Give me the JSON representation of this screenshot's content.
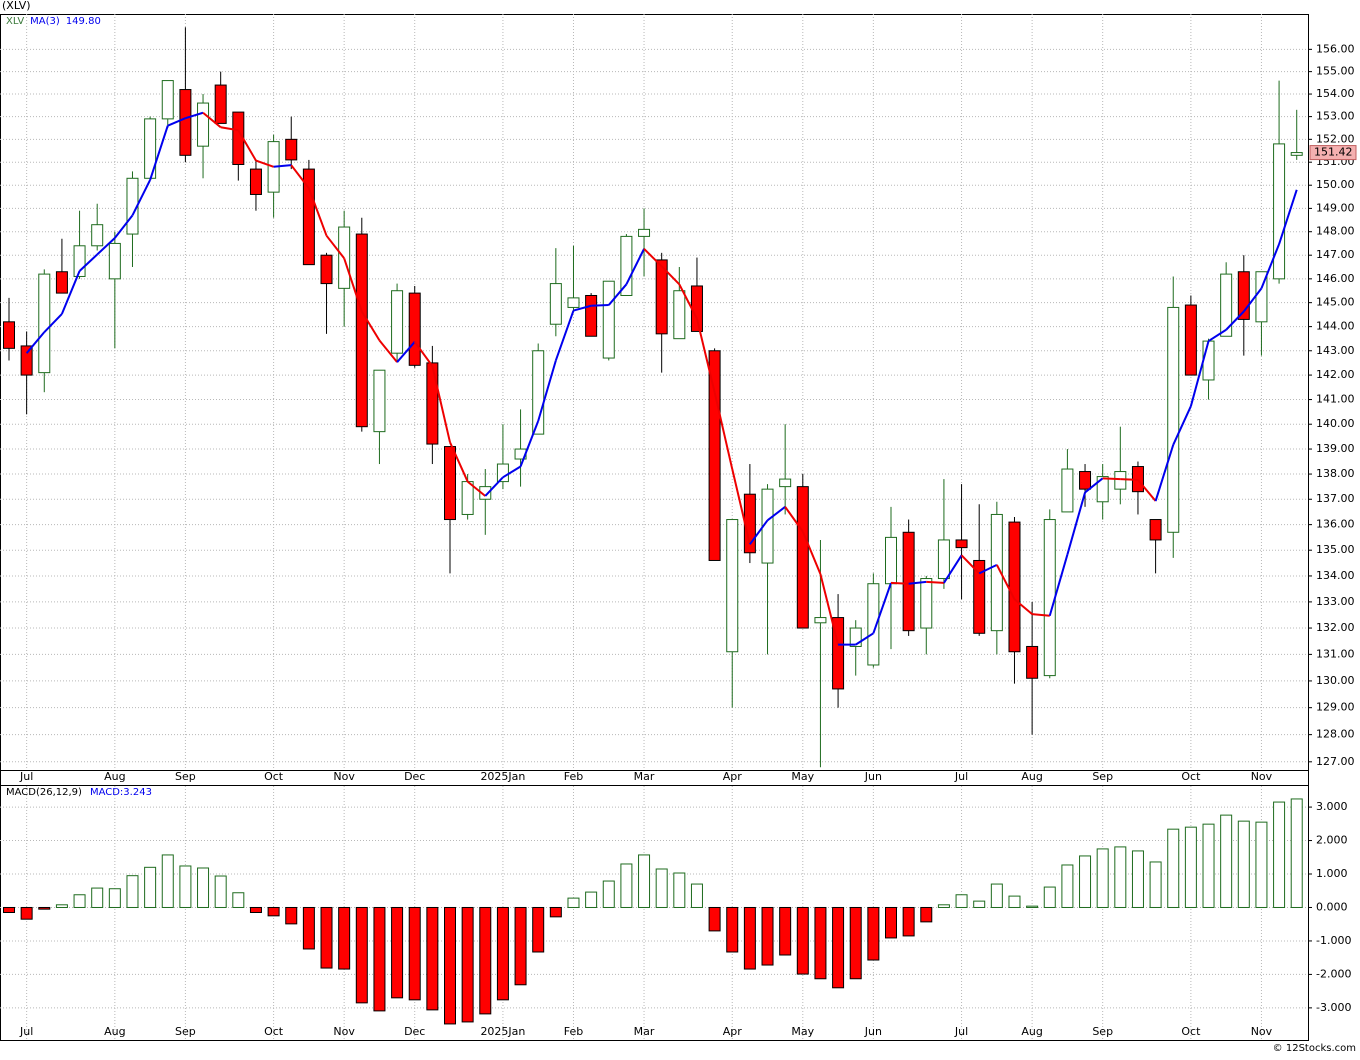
{
  "chart_data": [
    {
      "type": "candlestick",
      "title": "(XLV)",
      "symbol": "XLV",
      "log_scale": true,
      "grid": true,
      "up_color": "#1e6b1e",
      "down_color": "#ff0000",
      "categories": [
        null,
        "Jul",
        null,
        null,
        null,
        null,
        "Aug",
        null,
        null,
        null,
        "Sep",
        null,
        null,
        null,
        null,
        "Oct",
        null,
        null,
        null,
        "Nov",
        null,
        null,
        null,
        "Dec",
        null,
        null,
        null,
        null,
        "2025Jan",
        null,
        null,
        null,
        "Feb",
        null,
        null,
        null,
        "Mar",
        null,
        null,
        null,
        null,
        "Apr",
        null,
        null,
        null,
        "May",
        null,
        null,
        null,
        "Jun",
        null,
        null,
        null,
        null,
        "Jul",
        null,
        null,
        null,
        "Aug",
        null,
        null,
        null,
        "Sep",
        null,
        null,
        null,
        null,
        "Oct",
        null,
        null,
        null,
        "Nov",
        null,
        null
      ],
      "open": [
        144.2,
        143.2,
        142.1,
        146.3,
        146.1,
        147.4,
        146.0,
        147.9,
        150.3,
        152.9,
        154.2,
        151.7,
        154.4,
        153.2,
        150.7,
        149.7,
        152.0,
        150.7,
        147.0,
        145.6,
        147.9,
        139.7,
        142.9,
        145.4,
        142.5,
        139.1,
        136.4,
        137.0,
        137.7,
        138.6,
        139.6,
        144.1,
        144.8,
        145.3,
        142.7,
        145.3,
        147.8,
        146.8,
        143.5,
        145.7,
        143.0,
        131.1,
        137.2,
        134.5,
        137.5,
        137.5,
        132.2,
        132.4,
        131.3,
        130.6,
        133.7,
        135.7,
        132.0,
        133.9,
        135.4,
        134.6,
        131.9,
        136.1,
        131.3,
        130.2,
        136.5,
        138.1,
        136.9,
        137.4,
        138.3,
        136.2,
        135.7,
        144.9,
        141.8,
        143.6,
        146.3,
        144.2,
        146.0,
        151.3
      ],
      "high": [
        145.2,
        143.8,
        146.4,
        147.7,
        148.9,
        149.2,
        148.0,
        150.6,
        153.0,
        154.6,
        157.0,
        154.0,
        155.0,
        153.2,
        151.1,
        152.2,
        153.0,
        151.1,
        147.1,
        148.9,
        148.6,
        142.2,
        145.8,
        145.7,
        143.2,
        139.1,
        138.0,
        138.2,
        140.0,
        140.6,
        143.3,
        147.3,
        147.4,
        145.4,
        145.9,
        147.9,
        149.0,
        147.1,
        146.5,
        146.9,
        143.1,
        136.2,
        138.4,
        137.6,
        140.0,
        138.0,
        135.4,
        133.3,
        132.3,
        134.1,
        136.7,
        136.2,
        134.0,
        137.8,
        137.6,
        136.8,
        136.9,
        136.3,
        133.0,
        136.6,
        139.0,
        138.4,
        138.4,
        139.9,
        138.5,
        136.2,
        146.1,
        145.3,
        143.5,
        146.7,
        147.0,
        146.3,
        154.6,
        153.3
      ],
      "low": [
        142.6,
        140.4,
        141.3,
        145.4,
        146.0,
        147.2,
        143.1,
        146.5,
        150.3,
        152.5,
        151.0,
        150.3,
        152.7,
        150.2,
        148.9,
        148.6,
        150.7,
        146.6,
        143.7,
        144.0,
        139.7,
        138.4,
        142.6,
        142.3,
        138.4,
        134.1,
        136.2,
        135.6,
        137.4,
        137.5,
        139.7,
        143.6,
        144.6,
        143.6,
        142.6,
        145.3,
        146.1,
        142.1,
        143.5,
        143.8,
        134.6,
        129.0,
        134.5,
        131.0,
        136.4,
        132.0,
        126.8,
        129.0,
        130.2,
        130.5,
        131.2,
        131.7,
        131.0,
        133.5,
        133.1,
        131.7,
        131.0,
        129.9,
        128.0,
        130.1,
        136.5,
        136.7,
        136.2,
        136.8,
        136.4,
        134.1,
        134.7,
        142.0,
        141.0,
        143.6,
        142.8,
        142.8,
        145.8,
        151.1
      ],
      "close": [
        143.1,
        142.0,
        146.2,
        145.4,
        147.4,
        148.3,
        147.5,
        150.3,
        152.9,
        154.6,
        151.3,
        153.6,
        152.7,
        150.9,
        149.6,
        151.9,
        151.1,
        146.6,
        145.8,
        148.2,
        139.9,
        142.2,
        145.5,
        142.4,
        139.2,
        136.2,
        137.7,
        137.5,
        138.4,
        139.0,
        143.0,
        145.8,
        145.2,
        143.6,
        145.9,
        147.8,
        148.1,
        143.7,
        145.5,
        143.8,
        134.6,
        136.2,
        134.9,
        137.4,
        137.8,
        132.0,
        132.4,
        129.7,
        132.0,
        133.7,
        135.5,
        131.9,
        133.9,
        135.4,
        135.1,
        131.8,
        136.4,
        131.1,
        130.1,
        136.2,
        138.2,
        137.4,
        137.9,
        138.1,
        137.3,
        135.4,
        144.8,
        142.0,
        143.4,
        146.2,
        144.3,
        146.3,
        151.8,
        151.42
      ],
      "ma": {
        "name": "MA(3)",
        "rising_color": "#0000ee",
        "falling_color": "#ee0000",
        "values": [
          null,
          142.9,
          143.77,
          144.53,
          146.33,
          147.03,
          147.73,
          148.7,
          150.23,
          152.6,
          152.93,
          153.17,
          152.53,
          152.4,
          151.07,
          150.8,
          150.87,
          149.87,
          147.83,
          146.87,
          144.63,
          143.43,
          142.53,
          143.37,
          142.37,
          139.27,
          137.7,
          137.13,
          137.87,
          138.3,
          140.13,
          142.6,
          144.67,
          144.87,
          144.9,
          145.77,
          147.27,
          146.53,
          145.77,
          144.33,
          141.3,
          138.2,
          135.23,
          136.17,
          136.7,
          135.73,
          134.07,
          131.37,
          131.37,
          131.8,
          133.73,
          133.7,
          133.77,
          133.73,
          134.8,
          134.1,
          134.43,
          133.1,
          132.53,
          132.47,
          134.83,
          137.27,
          137.83,
          137.8,
          137.77,
          136.93,
          139.17,
          140.73,
          143.4,
          143.87,
          144.63,
          145.6,
          147.47,
          149.8
        ],
        "value_labels": {
          "73": "149.80"
        }
      },
      "last_label": "151.42",
      "ylim": [
        126.7,
        157.6
      ],
      "yticks": [
        {
          "value": 127,
          "label": "127.00"
        },
        {
          "value": 128,
          "label": "128.00"
        },
        {
          "value": 129,
          "label": "129.00"
        },
        {
          "value": 130,
          "label": "130.00"
        },
        {
          "value": 131,
          "label": "131.00"
        },
        {
          "value": 132,
          "label": "132.00"
        },
        {
          "value": 133,
          "label": "133.00"
        },
        {
          "value": 134,
          "label": "134.00"
        },
        {
          "value": 135,
          "label": "135.00"
        },
        {
          "value": 136,
          "label": "136.00"
        },
        {
          "value": 137,
          "label": "137.00"
        },
        {
          "value": 138,
          "label": "138.00"
        },
        {
          "value": 139,
          "label": "139.00"
        },
        {
          "value": 140,
          "label": "140.00"
        },
        {
          "value": 141,
          "label": "141.00"
        },
        {
          "value": 142,
          "label": "142.00"
        },
        {
          "value": 143,
          "label": "143.00"
        },
        {
          "value": 144,
          "label": "144.00"
        },
        {
          "value": 145,
          "label": "145.00"
        },
        {
          "value": 146,
          "label": "146.00"
        },
        {
          "value": 147,
          "label": "147.00"
        },
        {
          "value": 148,
          "label": "148.00"
        },
        {
          "value": 149,
          "label": "149.00"
        },
        {
          "value": 150,
          "label": "150.00"
        },
        {
          "value": 151,
          "label": "151.00"
        },
        {
          "value": 152,
          "label": "152.00"
        },
        {
          "value": 153,
          "label": "153.00"
        },
        {
          "value": 154,
          "label": "154.00"
        },
        {
          "value": 155,
          "label": "155.00"
        },
        {
          "value": 156,
          "label": "156.00"
        }
      ]
    },
    {
      "type": "bar",
      "title": "MACD(26,12,9)",
      "value_label": "MACD:3.243",
      "grid": true,
      "up_color": "#1e6b1e",
      "down_color": "#ff0000",
      "values": [
        -0.15,
        -0.35,
        -0.05,
        0.08,
        0.38,
        0.58,
        0.56,
        0.95,
        1.2,
        1.57,
        1.24,
        1.18,
        0.94,
        0.44,
        -0.15,
        -0.25,
        -0.49,
        -1.24,
        -1.81,
        -1.84,
        -2.85,
        -3.09,
        -2.7,
        -2.76,
        -3.06,
        -3.48,
        -3.42,
        -3.18,
        -2.76,
        -2.31,
        -1.33,
        -0.28,
        0.28,
        0.46,
        0.79,
        1.3,
        1.57,
        1.15,
        1.03,
        0.7,
        -0.7,
        -1.33,
        -1.84,
        -1.72,
        -1.42,
        -1.99,
        -2.13,
        -2.4,
        -2.13,
        -1.57,
        -0.91,
        -0.85,
        -0.43,
        0.08,
        0.38,
        0.19,
        0.7,
        0.34,
        0.04,
        0.61,
        1.27,
        1.54,
        1.75,
        1.81,
        1.69,
        1.36,
        2.34,
        2.4,
        2.49,
        2.76,
        2.58,
        2.55,
        3.15,
        3.243
      ],
      "ylim": [
        -3.96,
        3.63
      ],
      "yticks": [
        {
          "value": -3,
          "label": "-3.000"
        },
        {
          "value": -2,
          "label": "-2.000"
        },
        {
          "value": -1,
          "label": "-1.000"
        },
        {
          "value": 0,
          "label": "0.000"
        },
        {
          "value": 1,
          "label": "1.000"
        },
        {
          "value": 2,
          "label": "2.000"
        },
        {
          "value": 3,
          "label": "3.000"
        }
      ]
    }
  ],
  "footer": "© 12Stocks.com"
}
